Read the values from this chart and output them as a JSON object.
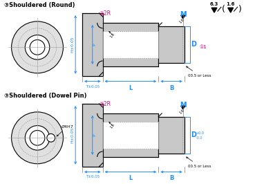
{
  "bg_color": "#ffffff",
  "title1": "③Shouldered (Round)",
  "title2": "③Shouldered (Dowel Pin)",
  "dim_color": "#1e8fff",
  "pink_color": "#e0007f",
  "black": "#000000",
  "gray_fill": "#c8c8c8",
  "gray_dark": "#999999",
  "gray_light": "#e0e0e0",
  "note63": "6.3",
  "note16": "1.6"
}
